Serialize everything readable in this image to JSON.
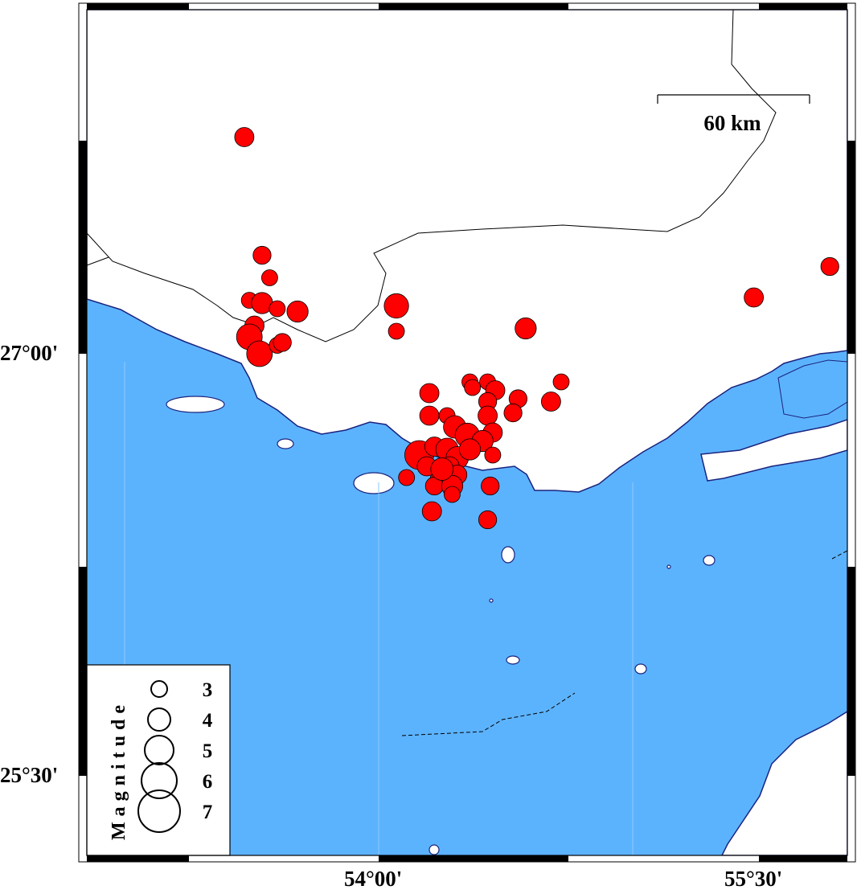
{
  "map": {
    "colors": {
      "sea": "#5cb3fd",
      "land": "#ffffff",
      "event": "#ff0000",
      "coast": "#1a237e"
    },
    "axes": {
      "x_labels": [
        {
          "text": "54°00'",
          "lon": 54.0
        },
        {
          "text": "55°30'",
          "lon": 55.5
        }
      ],
      "y_labels": [
        {
          "text": "27°00'",
          "lat": 27.0
        },
        {
          "text": "25°30'",
          "lat": 25.5
        }
      ]
    },
    "scale_bar": {
      "label": "60 km"
    },
    "legend": {
      "title": "Magnitude",
      "entries": [
        {
          "label": "3",
          "mag": 3
        },
        {
          "label": "4",
          "mag": 4
        },
        {
          "label": "5",
          "mag": 5
        },
        {
          "label": "6",
          "mag": 6
        },
        {
          "label": "7",
          "mag": 7
        }
      ]
    },
    "events": [
      {
        "lon": 53.47,
        "lat": 27.77,
        "mag": 3.5
      },
      {
        "lon": 53.54,
        "lat": 27.35,
        "mag": 3.3
      },
      {
        "lon": 53.57,
        "lat": 27.27,
        "mag": 3.0
      },
      {
        "lon": 53.49,
        "lat": 27.19,
        "mag": 3.0
      },
      {
        "lon": 53.54,
        "lat": 27.18,
        "mag": 3.8
      },
      {
        "lon": 53.6,
        "lat": 27.16,
        "mag": 3.0
      },
      {
        "lon": 53.68,
        "lat": 27.15,
        "mag": 3.8
      },
      {
        "lon": 53.51,
        "lat": 27.1,
        "mag": 3.5
      },
      {
        "lon": 53.49,
        "lat": 27.06,
        "mag": 4.5
      },
      {
        "lon": 53.53,
        "lat": 27.0,
        "mag": 4.5
      },
      {
        "lon": 53.6,
        "lat": 27.03,
        "mag": 3.0
      },
      {
        "lon": 53.62,
        "lat": 27.04,
        "mag": 3.3
      },
      {
        "lon": 54.07,
        "lat": 27.17,
        "mag": 4.3
      },
      {
        "lon": 54.07,
        "lat": 27.08,
        "mag": 3.0
      },
      {
        "lon": 54.58,
        "lat": 27.09,
        "mag": 3.8
      },
      {
        "lon": 55.48,
        "lat": 27.2,
        "mag": 3.5
      },
      {
        "lon": 55.78,
        "lat": 27.31,
        "mag": 3.3
      },
      {
        "lon": 54.2,
        "lat": 26.86,
        "mag": 3.5
      },
      {
        "lon": 54.2,
        "lat": 26.78,
        "mag": 3.5
      },
      {
        "lon": 54.36,
        "lat": 26.9,
        "mag": 3.0
      },
      {
        "lon": 54.37,
        "lat": 26.88,
        "mag": 3.0
      },
      {
        "lon": 54.43,
        "lat": 26.9,
        "mag": 3.0
      },
      {
        "lon": 54.46,
        "lat": 26.87,
        "mag": 3.5
      },
      {
        "lon": 54.43,
        "lat": 26.83,
        "mag": 3.3
      },
      {
        "lon": 54.55,
        "lat": 26.84,
        "mag": 3.3
      },
      {
        "lon": 54.53,
        "lat": 26.79,
        "mag": 3.3
      },
      {
        "lon": 54.68,
        "lat": 26.83,
        "mag": 3.5
      },
      {
        "lon": 54.72,
        "lat": 26.9,
        "mag": 3.0
      },
      {
        "lon": 54.27,
        "lat": 26.78,
        "mag": 3.0
      },
      {
        "lon": 54.43,
        "lat": 26.78,
        "mag": 3.5
      },
      {
        "lon": 54.45,
        "lat": 26.72,
        "mag": 3.5
      },
      {
        "lon": 54.3,
        "lat": 26.74,
        "mag": 4.0
      },
      {
        "lon": 54.35,
        "lat": 26.71,
        "mag": 4.3
      },
      {
        "lon": 54.41,
        "lat": 26.69,
        "mag": 3.8
      },
      {
        "lon": 54.16,
        "lat": 26.64,
        "mag": 5.0
      },
      {
        "lon": 54.22,
        "lat": 26.67,
        "mag": 3.5
      },
      {
        "lon": 54.27,
        "lat": 26.66,
        "mag": 4.0
      },
      {
        "lon": 54.31,
        "lat": 26.63,
        "mag": 4.0
      },
      {
        "lon": 54.28,
        "lat": 26.6,
        "mag": 3.5
      },
      {
        "lon": 54.36,
        "lat": 26.66,
        "mag": 3.8
      },
      {
        "lon": 54.31,
        "lat": 26.57,
        "mag": 3.5
      },
      {
        "lon": 54.24,
        "lat": 26.55,
        "mag": 3.5
      },
      {
        "lon": 54.22,
        "lat": 26.53,
        "mag": 3.3
      },
      {
        "lon": 54.29,
        "lat": 26.53,
        "mag": 3.8
      },
      {
        "lon": 54.29,
        "lat": 26.5,
        "mag": 3.0
      },
      {
        "lon": 54.11,
        "lat": 26.56,
        "mag": 3.0
      },
      {
        "lon": 54.44,
        "lat": 26.53,
        "mag": 3.3
      },
      {
        "lon": 54.45,
        "lat": 26.64,
        "mag": 3.0
      },
      {
        "lon": 54.21,
        "lat": 26.44,
        "mag": 3.5
      },
      {
        "lon": 54.43,
        "lat": 26.41,
        "mag": 3.3
      },
      {
        "lon": 54.19,
        "lat": 26.6,
        "mag": 3.5
      },
      {
        "lon": 54.25,
        "lat": 26.59,
        "mag": 4.0
      }
    ]
  }
}
